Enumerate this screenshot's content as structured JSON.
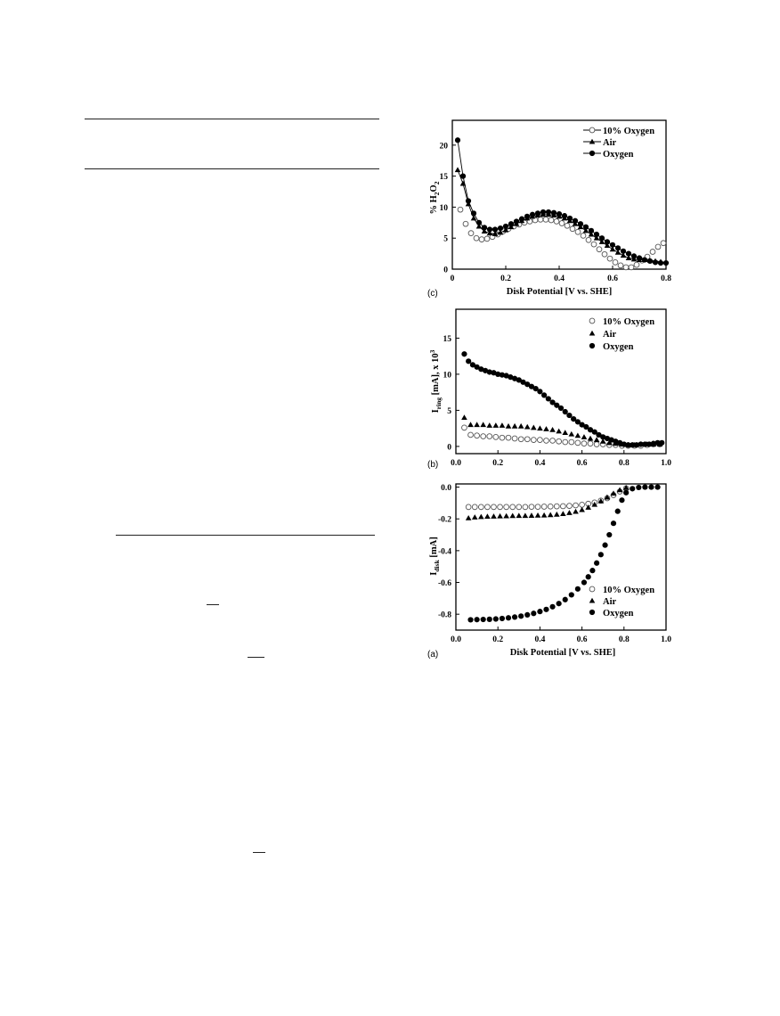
{
  "chart_data": [
    {
      "panel": "(c)",
      "type": "scatter",
      "xlabel": "Disk Potential [V vs. SHE]",
      "ylabel": "% H2O2",
      "xlim": [
        0,
        0.8
      ],
      "ylim": [
        0,
        24
      ],
      "xticks": [
        "0",
        "0.2",
        "0.4",
        "0.6",
        "0.8"
      ],
      "yticks": [
        "0",
        "5",
        "10",
        "15",
        "20"
      ],
      "legend_position": "top-right",
      "series": [
        {
          "name": "10% Oxygen",
          "marker": "open-circle",
          "x": [
            0.03,
            0.05,
            0.07,
            0.09,
            0.11,
            0.13,
            0.15,
            0.17,
            0.19,
            0.21,
            0.23,
            0.25,
            0.27,
            0.29,
            0.31,
            0.33,
            0.35,
            0.37,
            0.39,
            0.41,
            0.43,
            0.45,
            0.47,
            0.49,
            0.51,
            0.53,
            0.55,
            0.57,
            0.59,
            0.61,
            0.63,
            0.65,
            0.67,
            0.69,
            0.71,
            0.73,
            0.75,
            0.77,
            0.79
          ],
          "y": [
            9.6,
            7.3,
            5.8,
            5.0,
            4.8,
            4.9,
            5.2,
            5.6,
            6.1,
            6.5,
            6.9,
            7.2,
            7.5,
            7.7,
            7.9,
            8.0,
            8.0,
            7.9,
            7.7,
            7.4,
            7.0,
            6.5,
            6.0,
            5.4,
            4.7,
            4.0,
            3.2,
            2.4,
            1.7,
            1.1,
            0.6,
            0.3,
            0.3,
            0.7,
            1.4,
            2.0,
            2.8,
            3.6,
            4.2
          ]
        },
        {
          "name": "Air",
          "marker": "filled-triangle",
          "line": true,
          "x": [
            0.02,
            0.04,
            0.06,
            0.08,
            0.1,
            0.12,
            0.14,
            0.16,
            0.18,
            0.2,
            0.22,
            0.24,
            0.26,
            0.28,
            0.3,
            0.32,
            0.34,
            0.36,
            0.38,
            0.4,
            0.42,
            0.44,
            0.46,
            0.48,
            0.5,
            0.52,
            0.54,
            0.56,
            0.58,
            0.6,
            0.62,
            0.64,
            0.66,
            0.68,
            0.7,
            0.72,
            0.74,
            0.76,
            0.78
          ],
          "y": [
            16.0,
            13.8,
            10.5,
            8.2,
            6.9,
            6.1,
            5.8,
            5.7,
            5.9,
            6.3,
            6.8,
            7.3,
            7.8,
            8.2,
            8.5,
            8.7,
            8.8,
            8.8,
            8.7,
            8.5,
            8.2,
            7.8,
            7.3,
            6.8,
            6.2,
            5.6,
            5.0,
            4.4,
            3.8,
            3.2,
            2.7,
            2.2,
            1.8,
            1.6,
            1.5,
            1.5,
            1.4,
            1.3,
            1.2
          ]
        },
        {
          "name": "Oxygen",
          "marker": "filled-circle",
          "line": true,
          "x": [
            0.02,
            0.04,
            0.06,
            0.08,
            0.1,
            0.12,
            0.14,
            0.16,
            0.18,
            0.2,
            0.22,
            0.24,
            0.26,
            0.28,
            0.3,
            0.32,
            0.34,
            0.36,
            0.38,
            0.4,
            0.42,
            0.44,
            0.46,
            0.48,
            0.5,
            0.52,
            0.54,
            0.56,
            0.58,
            0.6,
            0.62,
            0.64,
            0.66,
            0.68,
            0.7,
            0.72,
            0.74,
            0.76,
            0.78,
            0.8
          ],
          "y": [
            20.8,
            15.0,
            11.0,
            9.0,
            7.5,
            6.7,
            6.4,
            6.4,
            6.6,
            6.9,
            7.3,
            7.7,
            8.1,
            8.5,
            8.8,
            9.0,
            9.2,
            9.2,
            9.1,
            8.9,
            8.6,
            8.2,
            7.8,
            7.3,
            6.8,
            6.2,
            5.6,
            5.0,
            4.4,
            3.9,
            3.4,
            2.9,
            2.5,
            2.1,
            1.8,
            1.5,
            1.3,
            1.1,
            1.0,
            1.0
          ]
        }
      ]
    },
    {
      "panel": "(b)",
      "type": "scatter",
      "ylabel": "Iring [mA], x 10³",
      "xlim": [
        0,
        1.0
      ],
      "ylim": [
        -1,
        19
      ],
      "xticks": [
        "0.0",
        "0.2",
        "0.4",
        "0.6",
        "0.8",
        "1.0"
      ],
      "yticks": [
        "0",
        "5",
        "10",
        "15"
      ],
      "legend_position": "top-right",
      "series": [
        {
          "name": "10% Oxygen",
          "marker": "open-circle",
          "x": [
            0.04,
            0.07,
            0.1,
            0.13,
            0.16,
            0.19,
            0.22,
            0.25,
            0.28,
            0.31,
            0.34,
            0.37,
            0.4,
            0.43,
            0.46,
            0.49,
            0.52,
            0.55,
            0.58,
            0.61,
            0.64,
            0.67,
            0.7,
            0.73,
            0.76,
            0.79,
            0.82,
            0.85,
            0.88,
            0.91,
            0.94,
            0.97
          ],
          "y": [
            2.6,
            1.6,
            1.5,
            1.4,
            1.4,
            1.3,
            1.2,
            1.2,
            1.1,
            1.0,
            1.0,
            0.9,
            0.9,
            0.8,
            0.8,
            0.7,
            0.6,
            0.6,
            0.5,
            0.4,
            0.4,
            0.3,
            0.3,
            0.2,
            0.2,
            0.1,
            0.1,
            0.1,
            0.1,
            0.2,
            0.3,
            0.3
          ]
        },
        {
          "name": "Air",
          "marker": "filled-triangle",
          "x": [
            0.04,
            0.07,
            0.1,
            0.13,
            0.16,
            0.19,
            0.22,
            0.25,
            0.28,
            0.31,
            0.34,
            0.37,
            0.4,
            0.43,
            0.46,
            0.49,
            0.52,
            0.55,
            0.58,
            0.61,
            0.64,
            0.67,
            0.7,
            0.73,
            0.76,
            0.79,
            0.82,
            0.85,
            0.88,
            0.91,
            0.94,
            0.97
          ],
          "y": [
            4.0,
            3.0,
            3.0,
            3.0,
            2.9,
            2.9,
            2.9,
            2.8,
            2.8,
            2.8,
            2.7,
            2.6,
            2.5,
            2.4,
            2.3,
            2.1,
            1.9,
            1.7,
            1.5,
            1.3,
            1.1,
            0.9,
            0.7,
            0.5,
            0.4,
            0.3,
            0.2,
            0.2,
            0.3,
            0.3,
            0.3,
            0.3
          ]
        },
        {
          "name": "Oxygen",
          "marker": "filled-circle",
          "x": [
            0.04,
            0.06,
            0.08,
            0.1,
            0.12,
            0.14,
            0.16,
            0.18,
            0.2,
            0.22,
            0.24,
            0.26,
            0.28,
            0.3,
            0.32,
            0.34,
            0.36,
            0.38,
            0.4,
            0.42,
            0.44,
            0.46,
            0.48,
            0.5,
            0.52,
            0.54,
            0.56,
            0.58,
            0.6,
            0.62,
            0.64,
            0.66,
            0.68,
            0.7,
            0.72,
            0.74,
            0.76,
            0.78,
            0.8,
            0.82,
            0.84,
            0.86,
            0.88,
            0.9,
            0.92,
            0.94,
            0.96,
            0.98
          ],
          "y": [
            12.8,
            11.8,
            11.3,
            11.0,
            10.7,
            10.5,
            10.3,
            10.2,
            10.0,
            9.9,
            9.8,
            9.6,
            9.4,
            9.2,
            8.9,
            8.6,
            8.3,
            8.0,
            7.6,
            7.1,
            6.6,
            6.1,
            5.7,
            5.3,
            4.8,
            4.3,
            3.8,
            3.4,
            3.0,
            2.7,
            2.3,
            2.0,
            1.6,
            1.3,
            1.1,
            0.9,
            0.7,
            0.5,
            0.3,
            0.2,
            0.2,
            0.2,
            0.3,
            0.3,
            0.3,
            0.4,
            0.5,
            0.5
          ]
        }
      ]
    },
    {
      "panel": "(a)",
      "type": "scatter",
      "xlabel": "Disk Potential [V vs. SHE]",
      "ylabel": "Idisk [mA]",
      "xlim": [
        0,
        1.0
      ],
      "ylim": [
        -0.9,
        0.02
      ],
      "xticks": [
        "0.0",
        "0.2",
        "0.4",
        "0.6",
        "0.8",
        "1.0"
      ],
      "yticks": [
        "0.0",
        "-0.2",
        "-0.4",
        "-0.6",
        "-0.8"
      ],
      "legend_position": "bottom-right",
      "series": [
        {
          "name": "10% Oxygen",
          "marker": "open-circle",
          "x": [
            0.06,
            0.09,
            0.12,
            0.15,
            0.18,
            0.21,
            0.24,
            0.27,
            0.3,
            0.33,
            0.36,
            0.39,
            0.42,
            0.45,
            0.48,
            0.51,
            0.54,
            0.57,
            0.6,
            0.63,
            0.66,
            0.69,
            0.72,
            0.75,
            0.78,
            0.81
          ],
          "y": [
            -0.125,
            -0.125,
            -0.125,
            -0.125,
            -0.125,
            -0.125,
            -0.125,
            -0.125,
            -0.125,
            -0.125,
            -0.124,
            -0.124,
            -0.123,
            -0.122,
            -0.121,
            -0.12,
            -0.118,
            -0.115,
            -0.111,
            -0.105,
            -0.097,
            -0.085,
            -0.07,
            -0.05,
            -0.028,
            -0.008
          ]
        },
        {
          "name": "Air",
          "marker": "filled-triangle",
          "x": [
            0.06,
            0.09,
            0.12,
            0.15,
            0.18,
            0.21,
            0.24,
            0.27,
            0.3,
            0.33,
            0.36,
            0.39,
            0.42,
            0.45,
            0.48,
            0.51,
            0.54,
            0.57,
            0.6,
            0.63,
            0.66,
            0.69,
            0.72,
            0.75,
            0.78,
            0.81
          ],
          "y": [
            -0.195,
            -0.19,
            -0.187,
            -0.185,
            -0.184,
            -0.183,
            -0.182,
            -0.181,
            -0.18,
            -0.18,
            -0.179,
            -0.178,
            -0.177,
            -0.175,
            -0.172,
            -0.168,
            -0.162,
            -0.154,
            -0.143,
            -0.128,
            -0.11,
            -0.088,
            -0.064,
            -0.04,
            -0.018,
            -0.004
          ]
        },
        {
          "name": "Oxygen",
          "marker": "filled-circle",
          "x": [
            0.07,
            0.1,
            0.13,
            0.16,
            0.19,
            0.22,
            0.25,
            0.28,
            0.31,
            0.34,
            0.37,
            0.4,
            0.43,
            0.46,
            0.49,
            0.52,
            0.55,
            0.58,
            0.61,
            0.63,
            0.65,
            0.67,
            0.69,
            0.71,
            0.73,
            0.75,
            0.77,
            0.79,
            0.81,
            0.84,
            0.87,
            0.9,
            0.93,
            0.96
          ],
          "y": [
            -0.835,
            -0.834,
            -0.833,
            -0.832,
            -0.83,
            -0.827,
            -0.823,
            -0.818,
            -0.812,
            -0.804,
            -0.795,
            -0.783,
            -0.77,
            -0.753,
            -0.733,
            -0.708,
            -0.678,
            -0.641,
            -0.6,
            -0.565,
            -0.525,
            -0.478,
            -0.425,
            -0.365,
            -0.3,
            -0.228,
            -0.152,
            -0.082,
            -0.035,
            -0.01,
            -0.002,
            0.0,
            0.0,
            0.0
          ]
        }
      ]
    }
  ]
}
